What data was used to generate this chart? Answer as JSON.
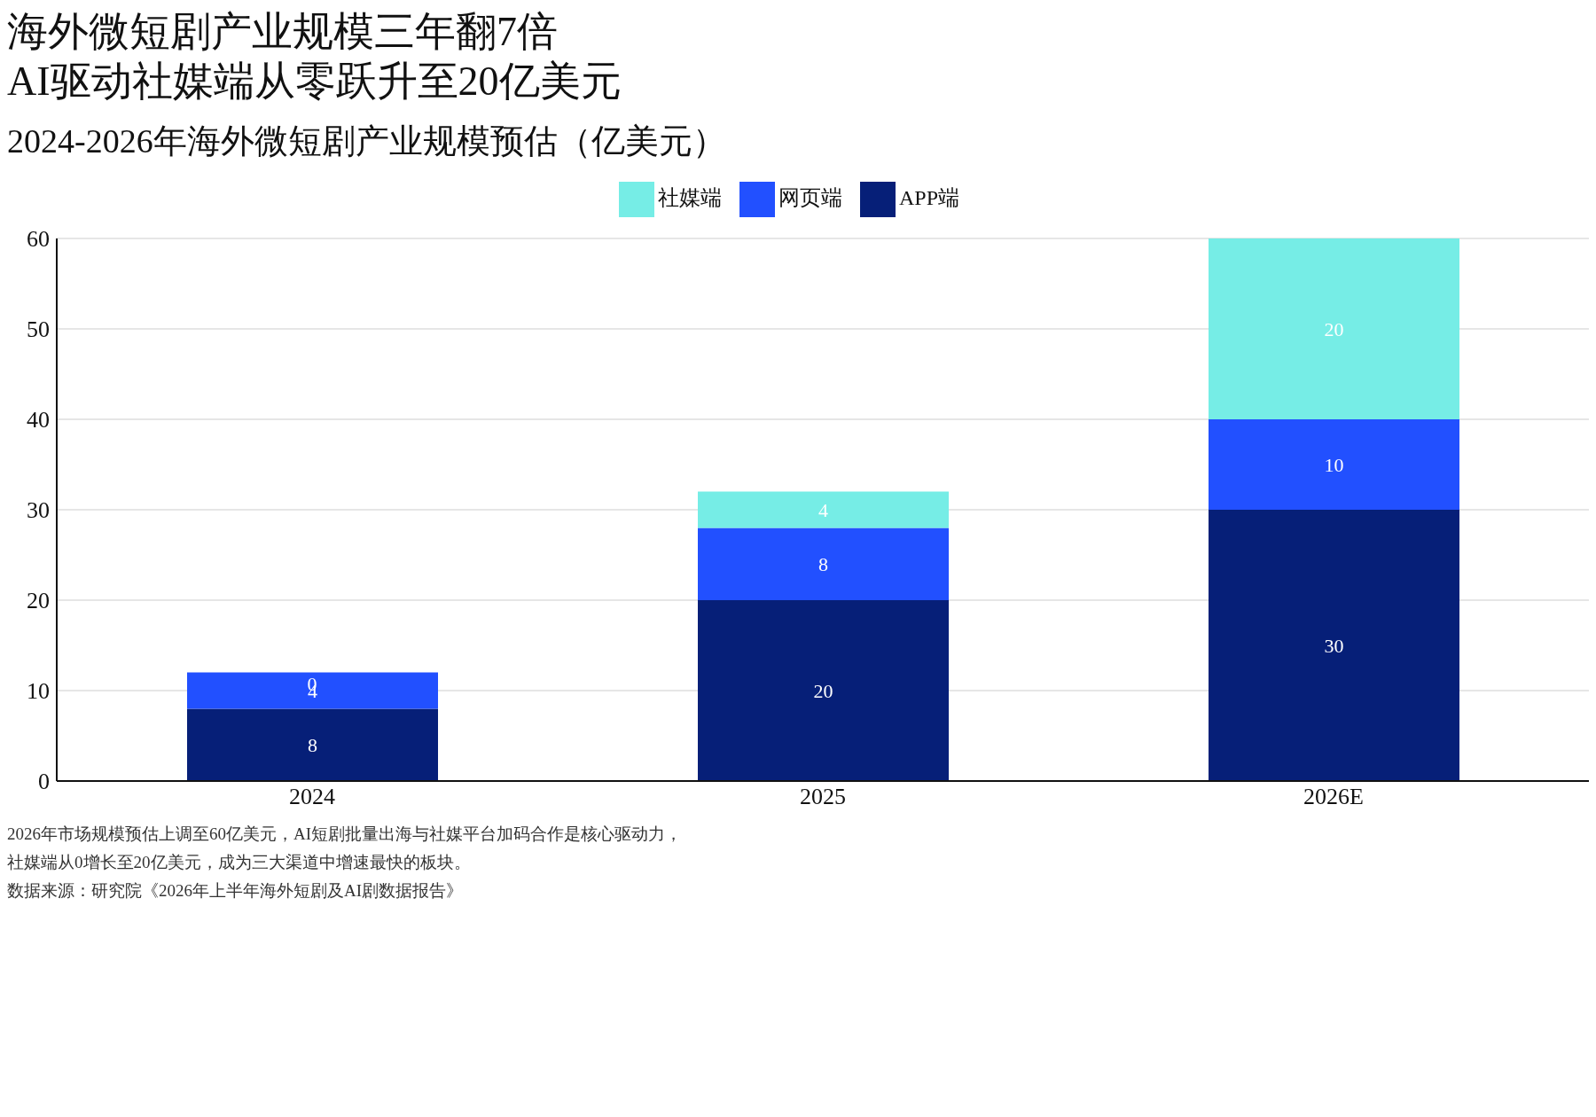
{
  "chart_data": {
    "type": "bar",
    "title": "海外微短剧产业规模三年翻7倍\nAI驱动社媒端从零跃升至20亿美元",
    "subtitle": "2024-2026年海外微短剧产业规模预估（亿美元）",
    "categories": [
      "2024",
      "2025",
      "2026E"
    ],
    "stacked": true,
    "series": [
      {
        "name": "APP端",
        "color": "#061f78",
        "values": [
          8,
          20,
          30
        ]
      },
      {
        "name": "网页端",
        "color": "#2250ff",
        "values": [
          4,
          8,
          10
        ]
      },
      {
        "name": "社媒端",
        "color": "#76ede6",
        "values": [
          0,
          4,
          20
        ]
      }
    ],
    "ylim": [
      0,
      60
    ],
    "yticks": [
      0,
      10,
      20,
      30,
      40,
      50,
      60
    ],
    "grid": "y",
    "legend": "top",
    "data_labels": true,
    "annotations": [
      "2026年市场规模预估上调至60亿美元，AI短剧批量出海与社媒平台加码合作是核心驱动力，",
      "社媒端从0增长至20亿美元，成为三大渠道中增速最快的板块。",
      "数据来源：研究院《2026年上半年海外短剧及AI剧数据报告》"
    ]
  }
}
